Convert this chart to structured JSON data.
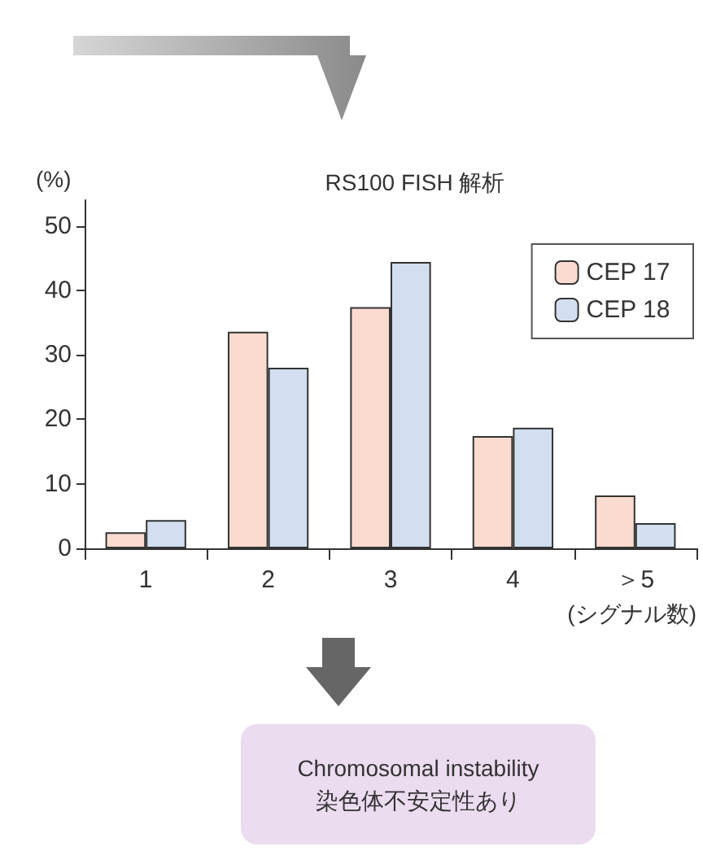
{
  "chart_data": {
    "type": "bar",
    "title": "RS100 FISH 解析",
    "ylabel": "(%)",
    "xlabel": "(シグナル数)",
    "categories": [
      "1",
      "2",
      "3",
      "4",
      "＞5"
    ],
    "series": [
      {
        "name": "CEP 17",
        "color": "#fadbd0",
        "values": [
          2.5,
          33.6,
          37.4,
          17.4,
          8.2
        ]
      },
      {
        "name": "CEP 18",
        "color": "#d3dff0",
        "values": [
          4.4,
          28.0,
          44.4,
          18.7,
          3.9
        ]
      }
    ],
    "ylim": [
      0,
      54
    ],
    "yticks": [
      0,
      10,
      20,
      30,
      40,
      50
    ],
    "grid": false,
    "legend": "top right",
    "annotations": [
      "Chromosomal instability",
      "染色体不安定性あり"
    ]
  }
}
